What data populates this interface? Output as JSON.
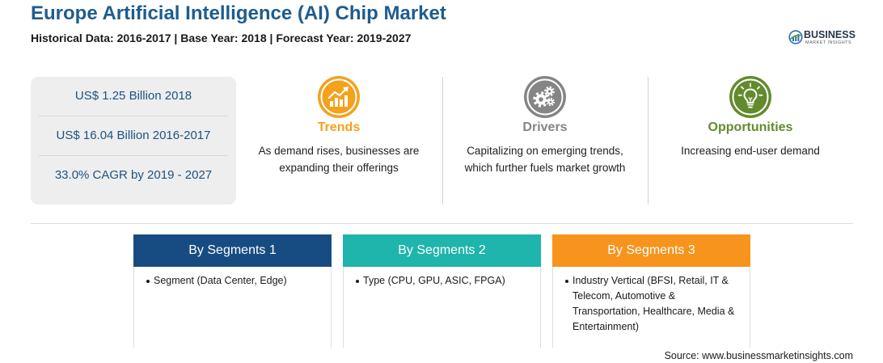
{
  "header": {
    "title": "Europe Artificial Intelligence (AI) Chip Market",
    "subtitle": "Historical Data: 2016-2017 | Base Year: 2018 | Forecast Year: 2019-2027"
  },
  "logo": {
    "icon": "business-market-insights-logo-icon",
    "wordmark": "BUSINESS",
    "tagline": "MARKET INSIGHTS"
  },
  "colors": {
    "title": "#1e5c8e",
    "stats_text": "#1b5282",
    "stats_background": "#eeeeee"
  },
  "stats": [
    {
      "text": "US$ 1.25 Billion 2018"
    },
    {
      "text": "US$ 16.04 Billion 2016-2017"
    },
    {
      "text": "33.0% CAGR by 2019 - 2027"
    }
  ],
  "insights": [
    {
      "title": "Trends",
      "icon": "rising-chart-icon",
      "color": "#f4a11c",
      "lines": [
        "As demand rises, businesses are",
        "expanding their offerings"
      ]
    },
    {
      "title": "Drivers",
      "icon": "gears-icon",
      "color": "#858585",
      "lines": [
        "Capitalizing on emerging trends,",
        "which further fuels market growth"
      ]
    },
    {
      "title": "Opportunities",
      "icon": "lightbulb-icon",
      "color": "#628b2d",
      "lines": [
        "Increasing end-user demand"
      ]
    }
  ],
  "segments": [
    {
      "title": "By Segments 1",
      "color": "#174c82",
      "items": [
        {
          "lines": [
            "Segment (Data Center, Edge)"
          ]
        }
      ]
    },
    {
      "title": "By Segments 2",
      "color": "#1fb4ac",
      "items": [
        {
          "lines": [
            "Type (CPU, GPU, ASIC, FPGA)"
          ]
        }
      ]
    },
    {
      "title": "By Segments 3",
      "color": "#f7941d",
      "items": [
        {
          "lines": [
            "Industry Vertical (BFSI, Retail, IT &",
            "Telecom, Automotive &",
            "Transportation, Healthcare, Media &",
            "Entertainment)"
          ]
        }
      ]
    }
  ],
  "source": "Source: www.businessmarketinsights.com"
}
